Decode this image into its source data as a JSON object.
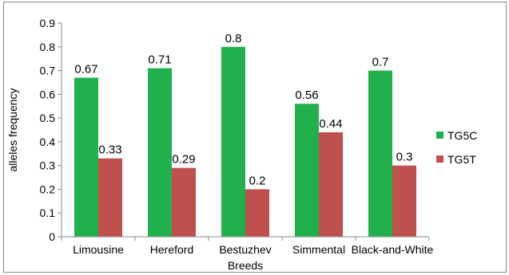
{
  "chart_data": {
    "type": "bar",
    "categories": [
      "Limousine",
      "Hereford",
      "Bestuzhev",
      "Simmental",
      "Black-and-White"
    ],
    "series": [
      {
        "name": "TG5C",
        "values": [
          0.67,
          0.71,
          0.8,
          0.56,
          0.7
        ],
        "color": "#21b14c"
      },
      {
        "name": "TG5T",
        "values": [
          0.33,
          0.29,
          0.2,
          0.44,
          0.3
        ],
        "color": "#c0504d"
      }
    ],
    "data_labels": [
      [
        "0.67",
        "0.71",
        "0.8",
        "0.56",
        "0.7"
      ],
      [
        "0.33",
        "0.29",
        "0.2",
        "0.44",
        "0.3"
      ]
    ],
    "yticks": [
      "0",
      "0.1",
      "0.2",
      "0.3",
      "0.4",
      "0.5",
      "0.6",
      "0.7",
      "0.8",
      "0.9"
    ],
    "ylim": [
      0,
      0.9
    ],
    "xlabel": "Breeds",
    "ylabel": "alleles frequency",
    "title": "",
    "grid": false,
    "legend_position": "right"
  }
}
